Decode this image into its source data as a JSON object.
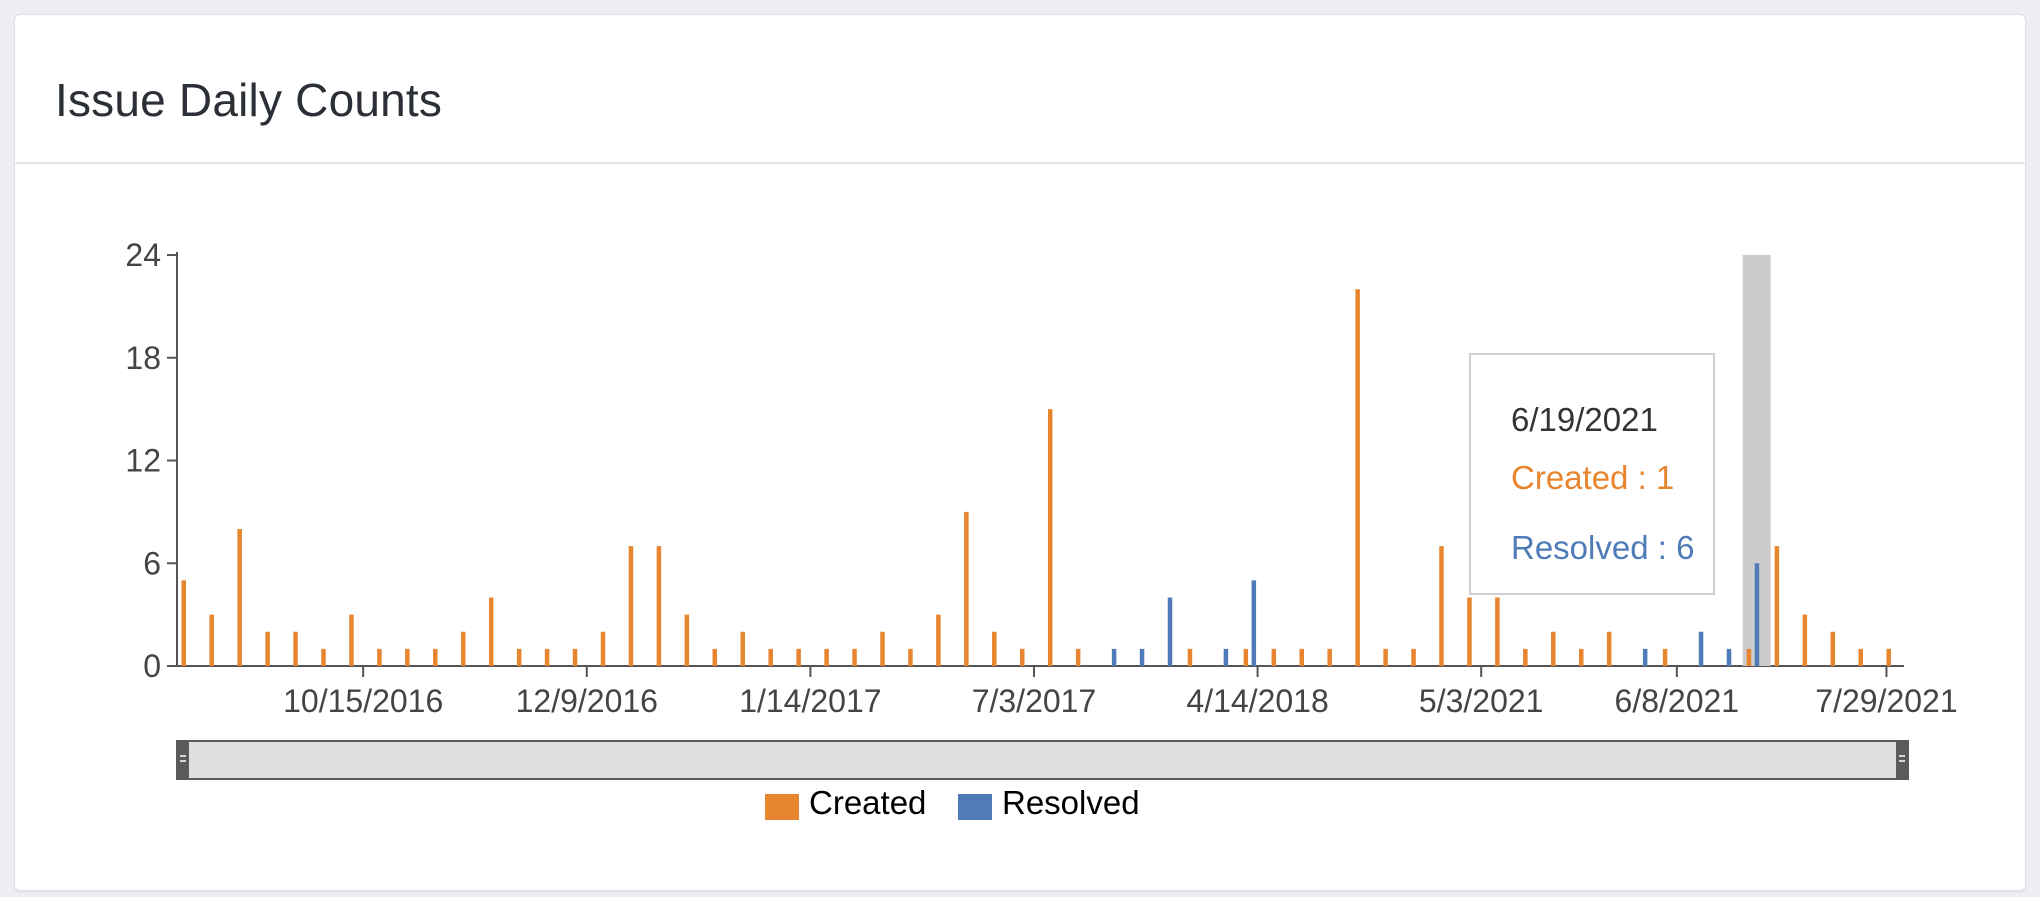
{
  "card": {
    "title": "Issue Daily Counts"
  },
  "colors": {
    "created": "#e8852f",
    "resolved": "#4f7cb8",
    "hover_band": "#cccccc"
  },
  "tooltip": {
    "date": "6/19/2021",
    "created_text": "Created : 1",
    "resolved_text": "Resolved : 6"
  },
  "legend": {
    "created_label": "Created",
    "resolved_label": "Resolved"
  },
  "chart_data": {
    "type": "bar",
    "title": "",
    "xlabel": "",
    "ylabel": "",
    "ylim": [
      0,
      24
    ],
    "y_ticks": [
      0,
      6,
      12,
      18,
      24
    ],
    "x_tick_labels": [
      "10/15/2016",
      "12/9/2016",
      "1/14/2017",
      "7/3/2017",
      "4/14/2018",
      "5/3/2021",
      "6/8/2021",
      "7/29/2021"
    ],
    "x_tick_positions": [
      6.5,
      14.5,
      22.5,
      30.5,
      38.5,
      46.5,
      53.5,
      61
    ],
    "categories_count": 62,
    "highlighted_index": 56,
    "grid": false,
    "legend_position": "bottom",
    "series": [
      {
        "name": "Created",
        "values": [
          5,
          3,
          8,
          2,
          2,
          1,
          3,
          1,
          1,
          1,
          2,
          4,
          1,
          1,
          1,
          2,
          7,
          7,
          3,
          1,
          2,
          1,
          1,
          1,
          1,
          2,
          1,
          3,
          9,
          2,
          1,
          15,
          1,
          0,
          0,
          0,
          1,
          0,
          1,
          1,
          1,
          1,
          22,
          1,
          1,
          7,
          4,
          4,
          1,
          2,
          1,
          2,
          0,
          1,
          0,
          0,
          1,
          7,
          3,
          2,
          1,
          1
        ]
      },
      {
        "name": "Resolved",
        "values": [
          0,
          0,
          0,
          0,
          0,
          0,
          0,
          0,
          0,
          0,
          0,
          0,
          0,
          0,
          0,
          0,
          0,
          0,
          0,
          0,
          0,
          0,
          0,
          0,
          0,
          0,
          0,
          0,
          0,
          0,
          0,
          0,
          0,
          1,
          1,
          4,
          0,
          1,
          5,
          0,
          0,
          0,
          0,
          0,
          0,
          0,
          0,
          0,
          0,
          0,
          0,
          0,
          1,
          0,
          2,
          1,
          6,
          0,
          0,
          0,
          0,
          0
        ]
      }
    ]
  }
}
